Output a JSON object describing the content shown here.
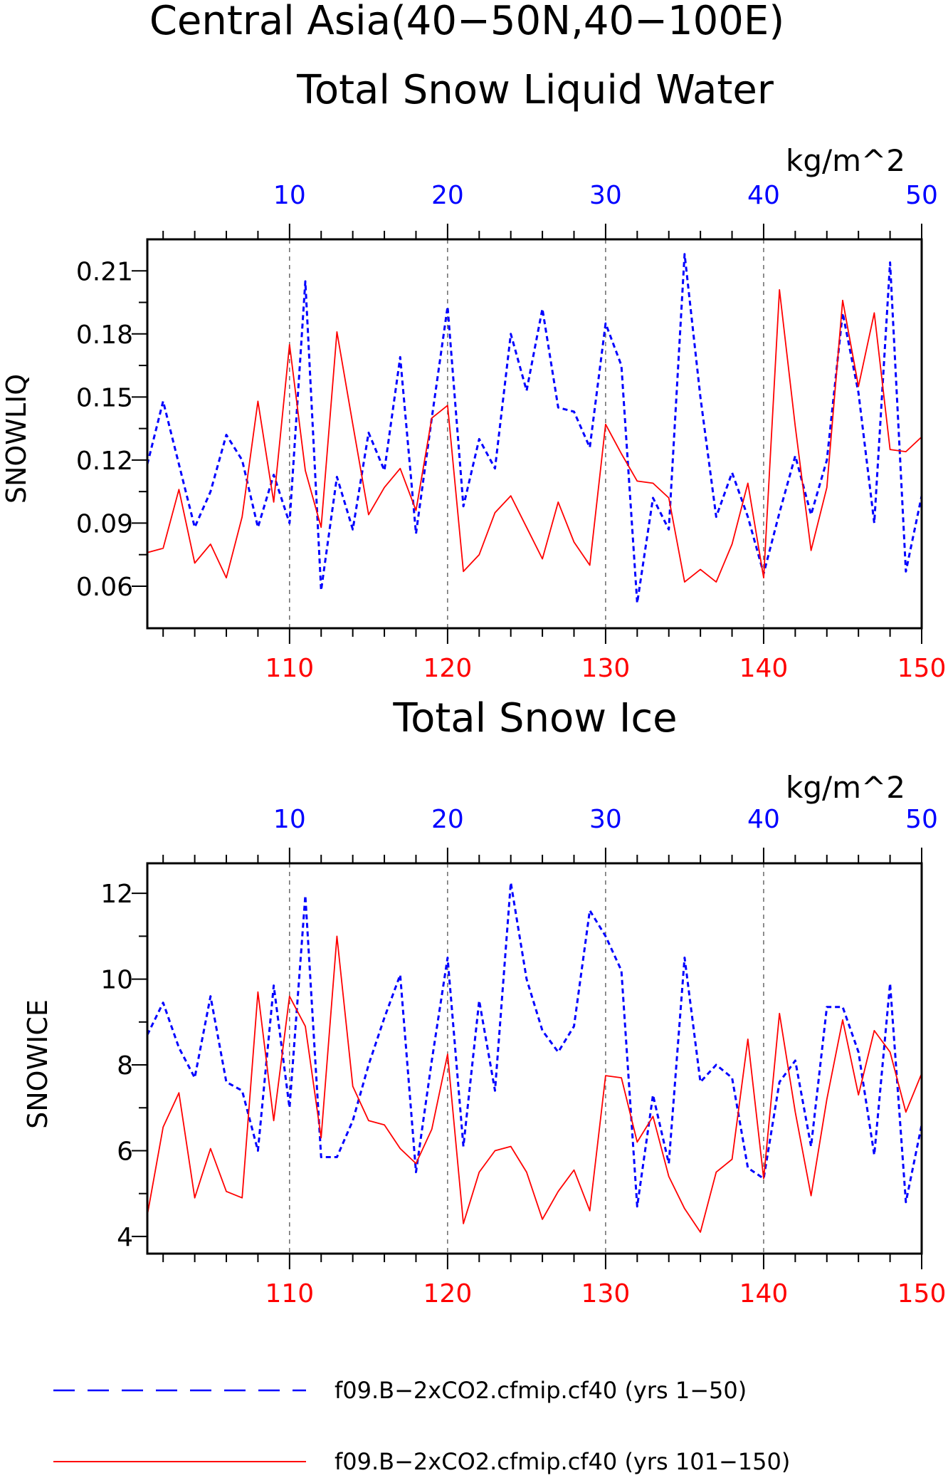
{
  "figure": {
    "title_line1": "Central Asia(40−50N,40−100E)",
    "colors": {
      "series_a": "#0000ff",
      "series_b": "#ff0000",
      "axis": "#000000",
      "grid": "#444444"
    }
  },
  "chart_data": [
    {
      "type": "line",
      "title": "Total Snow Liquid Water",
      "units_label": "kg/m^2",
      "ylabel": "SNOWLIQ",
      "ylim": [
        0.04,
        0.225
      ],
      "yticks": [
        0.06,
        0.09,
        0.12,
        0.15,
        0.18,
        0.21
      ],
      "ytick_labels": [
        "0.06",
        "0.09",
        "0.12",
        "0.15",
        "0.18",
        "0.21"
      ],
      "top_axis": {
        "range": [
          1,
          50
        ],
        "ticks": [
          10,
          20,
          30,
          40,
          50
        ],
        "color": "#0000ff"
      },
      "bottom_axis": {
        "range": [
          101,
          150
        ],
        "ticks": [
          110,
          120,
          130,
          140,
          150
        ],
        "color": "#ff0000"
      },
      "grid_x": [
        10,
        20,
        30,
        40
      ],
      "series": [
        {
          "name": "f09.B−2xCO2.cfmip.cf40 (yrs 1−50)",
          "axis": "top",
          "style": "dashed",
          "color": "#0000ff",
          "x": [
            1,
            2,
            3,
            4,
            5,
            6,
            7,
            8,
            9,
            10,
            11,
            12,
            13,
            14,
            15,
            16,
            17,
            18,
            19,
            20,
            21,
            22,
            23,
            24,
            25,
            26,
            27,
            28,
            29,
            30,
            31,
            32,
            33,
            34,
            35,
            36,
            37,
            38,
            39,
            40,
            41,
            42,
            43,
            44,
            45,
            46,
            47,
            48,
            49,
            50
          ],
          "values": [
            0.118,
            0.148,
            0.118,
            0.088,
            0.105,
            0.132,
            0.12,
            0.088,
            0.113,
            0.09,
            0.205,
            0.058,
            0.112,
            0.087,
            0.133,
            0.115,
            0.169,
            0.085,
            0.14,
            0.193,
            0.098,
            0.13,
            0.116,
            0.18,
            0.153,
            0.192,
            0.145,
            0.143,
            0.126,
            0.185,
            0.165,
            0.052,
            0.102,
            0.087,
            0.218,
            0.15,
            0.093,
            0.114,
            0.093,
            0.066,
            0.095,
            0.122,
            0.094,
            0.12,
            0.19,
            0.152,
            0.09,
            0.214,
            0.067,
            0.103
          ]
        },
        {
          "name": "f09.B−2xCO2.cfmip.cf40 (yrs 101−150)",
          "axis": "bottom",
          "style": "solid",
          "color": "#ff0000",
          "x": [
            101,
            102,
            103,
            104,
            105,
            106,
            107,
            108,
            109,
            110,
            111,
            112,
            113,
            114,
            115,
            116,
            117,
            118,
            119,
            120,
            121,
            122,
            123,
            124,
            125,
            126,
            127,
            128,
            129,
            130,
            131,
            132,
            133,
            134,
            135,
            136,
            137,
            138,
            139,
            140,
            141,
            142,
            143,
            144,
            145,
            146,
            147,
            148,
            149,
            150
          ],
          "values": [
            0.076,
            0.078,
            0.106,
            0.071,
            0.08,
            0.064,
            0.093,
            0.148,
            0.1,
            0.175,
            0.115,
            0.088,
            0.181,
            0.137,
            0.094,
            0.107,
            0.116,
            0.096,
            0.14,
            0.146,
            0.067,
            0.075,
            0.095,
            0.103,
            0.088,
            0.073,
            0.1,
            0.081,
            0.07,
            0.137,
            0.123,
            0.11,
            0.109,
            0.102,
            0.062,
            0.068,
            0.062,
            0.08,
            0.109,
            0.064,
            0.201,
            0.136,
            0.077,
            0.107,
            0.196,
            0.155,
            0.19,
            0.125,
            0.124,
            0.131
          ]
        }
      ]
    },
    {
      "type": "line",
      "title": "Total Snow Ice",
      "units_label": "kg/m^2",
      "ylabel": "SNOWICE",
      "ylim": [
        3.6,
        12.7
      ],
      "yticks": [
        4,
        6,
        8,
        10,
        12
      ],
      "ytick_labels": [
        "4",
        "6",
        "8",
        "10",
        "12"
      ],
      "top_axis": {
        "range": [
          1,
          50
        ],
        "ticks": [
          10,
          20,
          30,
          40,
          50
        ],
        "color": "#0000ff"
      },
      "bottom_axis": {
        "range": [
          101,
          150
        ],
        "ticks": [
          110,
          120,
          130,
          140,
          150
        ],
        "color": "#ff0000"
      },
      "grid_x": [
        10,
        20,
        30,
        40
      ],
      "series": [
        {
          "name": "f09.B−2xCO2.cfmip.cf40 (yrs 1−50)",
          "axis": "top",
          "style": "dashed",
          "color": "#0000ff",
          "x": [
            1,
            2,
            3,
            4,
            5,
            6,
            7,
            8,
            9,
            10,
            11,
            12,
            13,
            14,
            15,
            16,
            17,
            18,
            19,
            20,
            21,
            22,
            23,
            24,
            25,
            26,
            27,
            28,
            29,
            30,
            31,
            32,
            33,
            34,
            35,
            36,
            37,
            38,
            39,
            40,
            41,
            42,
            43,
            44,
            45,
            46,
            47,
            48,
            49,
            50
          ],
          "values": [
            8.7,
            9.45,
            8.4,
            7.7,
            9.6,
            7.6,
            7.4,
            6.0,
            9.85,
            7.0,
            11.95,
            5.85,
            5.85,
            6.7,
            8.0,
            9.1,
            10.1,
            5.5,
            8.1,
            10.5,
            6.1,
            9.5,
            7.4,
            12.25,
            10.0,
            8.8,
            8.3,
            8.9,
            11.6,
            11.0,
            10.2,
            4.7,
            7.3,
            5.7,
            10.5,
            7.6,
            8.0,
            7.7,
            5.6,
            5.35,
            7.6,
            8.1,
            6.1,
            9.35,
            9.35,
            8.3,
            5.9,
            9.9,
            4.8,
            6.6
          ]
        },
        {
          "name": "f09.B−2xCO2.cfmip.cf40 (yrs 101−150)",
          "axis": "bottom",
          "style": "solid",
          "color": "#ff0000",
          "x": [
            101,
            102,
            103,
            104,
            105,
            106,
            107,
            108,
            109,
            110,
            111,
            112,
            113,
            114,
            115,
            116,
            117,
            118,
            119,
            120,
            121,
            122,
            123,
            124,
            125,
            126,
            127,
            128,
            129,
            130,
            131,
            132,
            133,
            134,
            135,
            136,
            137,
            138,
            139,
            140,
            141,
            142,
            143,
            144,
            145,
            146,
            147,
            148,
            149,
            150
          ],
          "values": [
            4.5,
            6.55,
            7.35,
            4.9,
            6.05,
            5.05,
            4.9,
            9.7,
            6.7,
            9.6,
            8.9,
            6.3,
            11.0,
            7.5,
            6.7,
            6.6,
            6.05,
            5.7,
            6.5,
            8.25,
            4.3,
            5.5,
            6.0,
            6.1,
            5.5,
            4.4,
            5.05,
            5.55,
            4.6,
            7.75,
            7.7,
            6.2,
            6.8,
            5.4,
            4.65,
            4.1,
            5.5,
            5.8,
            8.6,
            5.35,
            9.2,
            6.9,
            4.95,
            7.2,
            9.05,
            7.3,
            8.8,
            8.3,
            6.9,
            7.8
          ]
        }
      ]
    }
  ],
  "legend": {
    "items": [
      {
        "label": "f09.B−2xCO2.cfmip.cf40 (yrs 1−50)",
        "color": "#0000ff",
        "style": "dashed"
      },
      {
        "label": "f09.B−2xCO2.cfmip.cf40 (yrs 101−150)",
        "color": "#ff0000",
        "style": "solid"
      }
    ]
  }
}
